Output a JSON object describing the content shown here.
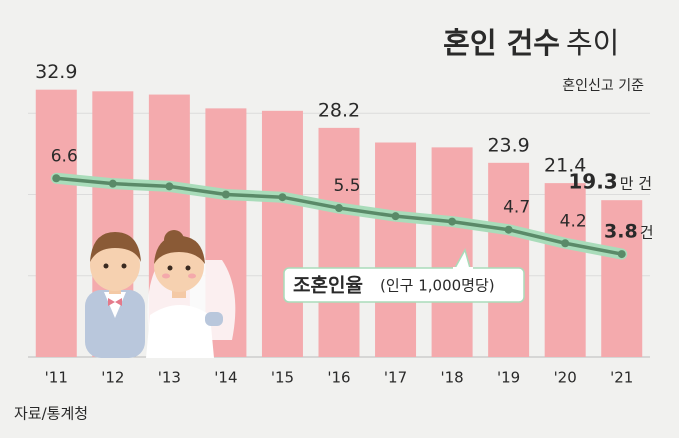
{
  "chart_data": {
    "type": "bar_line",
    "title": "혼인 건수",
    "title_light": "추이",
    "subtitle": "혼인신고 기준",
    "categories": [
      "'11",
      "'12",
      "'13",
      "'14",
      "'15",
      "'16",
      "'17",
      "'18",
      "'19",
      "'20",
      "'21"
    ],
    "series": [
      {
        "name": "혼인 건수",
        "color": "#f4aaad",
        "values": [
          32.9,
          32.7,
          32.3,
          30.6,
          30.3,
          28.2,
          26.4,
          25.8,
          23.9,
          21.4,
          19.3
        ],
        "value_labels": [
          "32.9",
          null,
          null,
          null,
          null,
          "28.2",
          null,
          null,
          "23.9",
          "21.4",
          "19.3"
        ],
        "unit": "만 건"
      },
      {
        "name": "조혼인율",
        "name_note": "(인구 1,000명당)",
        "axis": "y2",
        "color": "#5a8a68",
        "values": [
          6.6,
          6.4,
          6.3,
          6.0,
          5.9,
          5.5,
          5.2,
          5.0,
          4.7,
          4.2,
          3.8
        ],
        "value_labels": [
          "6.6",
          null,
          null,
          null,
          null,
          "5.5",
          null,
          null,
          "4.7",
          "4.2",
          "3.8"
        ],
        "unit": "건"
      }
    ],
    "ylim": [
      0,
      40
    ],
    "yticks": [
      0,
      10,
      20,
      30
    ],
    "y2lim": [
      0,
      12
    ],
    "grid": true,
    "source": "자료/통계청"
  }
}
